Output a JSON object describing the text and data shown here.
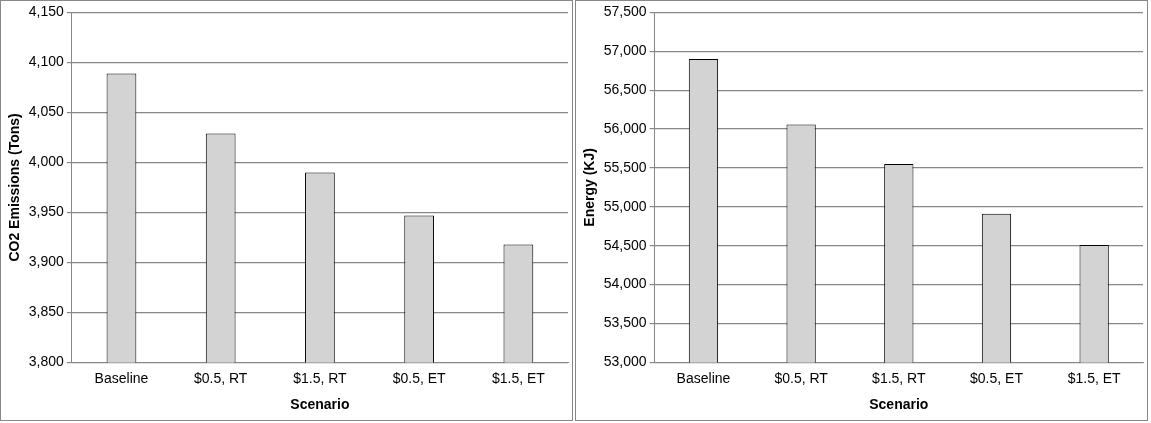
{
  "chart_data": [
    {
      "type": "bar",
      "xlabel": "Scenario",
      "ylabel": "CO2 Emissions (Tons)",
      "categories": [
        "Baseline",
        "$0.5, RT",
        "$1.5, RT",
        "$0.5, ET",
        "$1.5, ET"
      ],
      "series": [
        {
          "color": "#d3d3d3",
          "values": [
            4089,
            4029,
            3990,
            3947,
            3918
          ]
        }
      ],
      "ylim": [
        3800,
        4150
      ],
      "yticks": [
        {
          "value": 3800,
          "label": "3,800"
        },
        {
          "value": 3850,
          "label": "3,850"
        },
        {
          "value": 3900,
          "label": "3,900"
        },
        {
          "value": 3950,
          "label": "3,950"
        },
        {
          "value": 4000,
          "label": "4,000"
        },
        {
          "value": 4050,
          "label": "4,050"
        },
        {
          "value": 4100,
          "label": "4,100"
        },
        {
          "value": 4150,
          "label": "4,150"
        }
      ],
      "grid": "y",
      "legend": false
    },
    {
      "type": "bar",
      "xlabel": "Scenario",
      "ylabel": "Energy (KJ)",
      "categories": [
        "Baseline",
        "$0.5, RT",
        "$1.5, RT",
        "$0.5, ET",
        "$1.5, ET"
      ],
      "series": [
        {
          "color": "#d3d3d3",
          "values": [
            56900,
            56060,
            55550,
            54910,
            54510
          ]
        }
      ],
      "ylim": [
        53000,
        57500
      ],
      "yticks": [
        {
          "value": 53000,
          "label": "53,000"
        },
        {
          "value": 53500,
          "label": "53,500"
        },
        {
          "value": 54000,
          "label": "54,000"
        },
        {
          "value": 54500,
          "label": "54,500"
        },
        {
          "value": 55000,
          "label": "55,000"
        },
        {
          "value": 55500,
          "label": "55,500"
        },
        {
          "value": 56000,
          "label": "56,000"
        },
        {
          "value": 56500,
          "label": "56,500"
        },
        {
          "value": 57000,
          "label": "57,000"
        },
        {
          "value": 57500,
          "label": "57,500"
        }
      ],
      "grid": "y",
      "legend": false
    }
  ]
}
